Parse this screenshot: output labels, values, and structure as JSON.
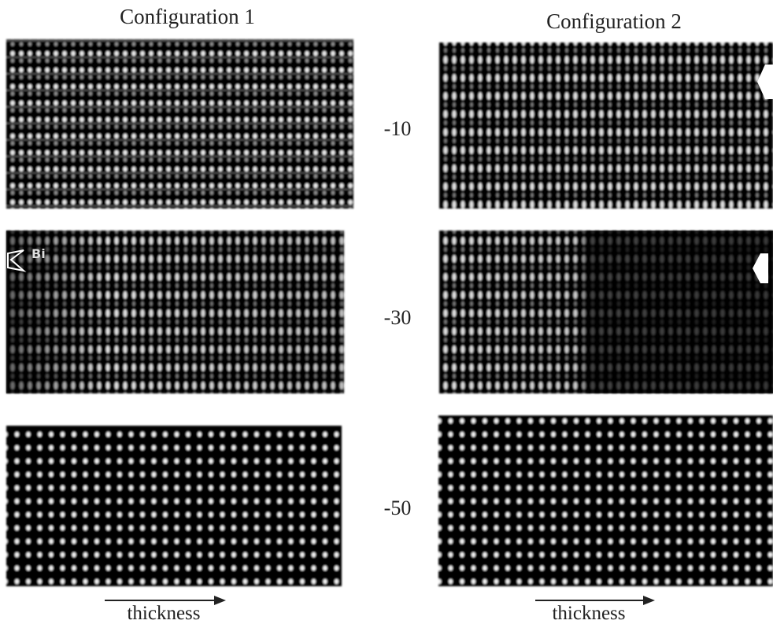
{
  "columns": [
    {
      "title": "Configuration 1",
      "axis_label": "thickness"
    },
    {
      "title": "Configuration 2",
      "axis_label": "thickness"
    }
  ],
  "rows": [
    {
      "label": "-10"
    },
    {
      "label": "-30"
    },
    {
      "label": "-50"
    }
  ],
  "annotation": "Bi"
}
